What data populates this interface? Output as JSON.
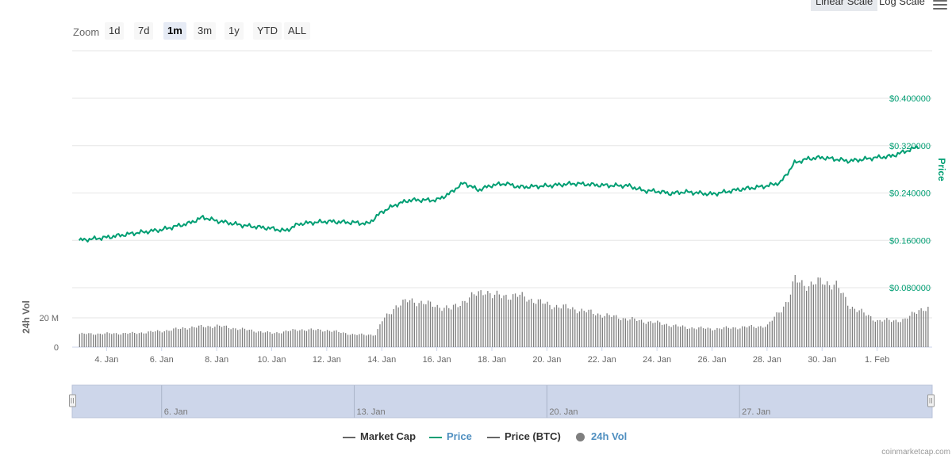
{
  "header": {
    "scale_buttons": [
      {
        "label": "Linear Scale",
        "active": true
      },
      {
        "label": "Log Scale",
        "active": false
      }
    ],
    "menu_icon": "hamburger-menu-icon"
  },
  "zoom": {
    "label": "Zoom",
    "buttons": [
      {
        "label": "1d",
        "active": false
      },
      {
        "label": "7d",
        "active": false
      },
      {
        "label": "1m",
        "active": true
      },
      {
        "label": "3m",
        "active": false
      },
      {
        "label": "1y",
        "active": false
      },
      {
        "label": "YTD",
        "active": false
      },
      {
        "label": "ALL",
        "active": false
      }
    ]
  },
  "colors": {
    "price": "#009e73",
    "volume": "#7f7f7f",
    "navigator_fill": "#cdd6ea",
    "axis_text": "#666666",
    "grid": "#e6e6e6"
  },
  "legend": [
    {
      "label": "Market Cap",
      "symbol": "line",
      "color": "#666666",
      "text_color": "#333333"
    },
    {
      "label": "Price",
      "symbol": "line",
      "color": "#009e73",
      "text_color": "#4f8fc0"
    },
    {
      "label": "Price (BTC)",
      "symbol": "line",
      "color": "#666666",
      "text_color": "#333333"
    },
    {
      "label": "24h Vol",
      "symbol": "dot",
      "color": "#7f7f7f",
      "text_color": "#4f8fc0"
    }
  ],
  "credit": "coinmarketcap.com",
  "chart_data": {
    "type": "line",
    "x_type": "date",
    "x_ticks": [
      "4. Jan",
      "6. Jan",
      "8. Jan",
      "10. Jan",
      "12. Jan",
      "14. Jan",
      "16. Jan",
      "18. Jan",
      "20. Jan",
      "22. Jan",
      "24. Jan",
      "26. Jan",
      "28. Jan",
      "30. Jan",
      "1. Feb"
    ],
    "x_range": [
      "2018-01-02T18:00",
      "2018-02-03T00:00"
    ],
    "price_axis": {
      "title": "Price",
      "ticks": [
        "$0.080000",
        "$0.160000",
        "$0.240000",
        "$0.320000",
        "$0.400000"
      ],
      "range": [
        0.08,
        0.4
      ],
      "position": "right"
    },
    "volume_axis": {
      "title": "24h Vol",
      "ticks": [
        "0",
        "20 M"
      ],
      "range": [
        0,
        40000000
      ],
      "position": "left"
    },
    "series": [
      {
        "name": "Price",
        "type": "line",
        "unit": "USD",
        "points": [
          [
            "2018-01-03",
            0.16
          ],
          [
            "2018-01-04",
            0.165
          ],
          [
            "2018-01-05",
            0.172
          ],
          [
            "2018-01-06",
            0.178
          ],
          [
            "2018-01-07",
            0.189
          ],
          [
            "2018-01-07T12:00",
            0.199
          ],
          [
            "2018-01-08",
            0.193
          ],
          [
            "2018-01-09",
            0.185
          ],
          [
            "2018-01-10",
            0.18
          ],
          [
            "2018-01-10T12:00",
            0.176
          ],
          [
            "2018-01-11",
            0.188
          ],
          [
            "2018-01-12",
            0.192
          ],
          [
            "2018-01-13",
            0.19
          ],
          [
            "2018-01-13T12:00",
            0.188
          ],
          [
            "2018-01-14",
            0.208
          ],
          [
            "2018-01-14T12:00",
            0.22
          ],
          [
            "2018-01-15",
            0.228
          ],
          [
            "2018-01-16",
            0.228
          ],
          [
            "2018-01-16T12:00",
            0.24
          ],
          [
            "2018-01-16T18:00",
            0.25
          ],
          [
            "2018-01-17",
            0.257
          ],
          [
            "2018-01-17T12:00",
            0.245
          ],
          [
            "2018-01-18",
            0.253
          ],
          [
            "2018-01-18T12:00",
            0.256
          ],
          [
            "2018-01-19",
            0.25
          ],
          [
            "2018-01-20",
            0.252
          ],
          [
            "2018-01-20T12:00",
            0.254
          ],
          [
            "2018-01-21",
            0.256
          ],
          [
            "2018-01-22",
            0.253
          ],
          [
            "2018-01-23",
            0.252
          ],
          [
            "2018-01-23T12:00",
            0.244
          ],
          [
            "2018-01-24",
            0.243
          ],
          [
            "2018-01-24T12:00",
            0.239
          ],
          [
            "2018-01-25",
            0.242
          ],
          [
            "2018-01-26",
            0.238
          ],
          [
            "2018-01-27",
            0.246
          ],
          [
            "2018-01-28",
            0.252
          ],
          [
            "2018-01-28T12:00",
            0.258
          ],
          [
            "2018-01-29",
            0.291
          ],
          [
            "2018-01-29T12:00",
            0.298
          ],
          [
            "2018-01-30",
            0.3
          ],
          [
            "2018-01-30T12:00",
            0.297
          ],
          [
            "2018-01-31",
            0.294
          ],
          [
            "2018-02-01",
            0.3
          ],
          [
            "2018-02-01T12:00",
            0.302
          ],
          [
            "2018-02-02",
            0.31
          ],
          [
            "2018-02-02T12:00",
            0.318
          ]
        ]
      },
      {
        "name": "24h Vol",
        "type": "column",
        "unit": "USD",
        "points": [
          [
            "2018-01-03",
            9000000
          ],
          [
            "2018-01-05",
            9500000
          ],
          [
            "2018-01-06",
            11000000
          ],
          [
            "2018-01-07",
            13500000
          ],
          [
            "2018-01-08",
            14500000
          ],
          [
            "2018-01-09",
            12000000
          ],
          [
            "2018-01-10",
            9500000
          ],
          [
            "2018-01-11",
            12000000
          ],
          [
            "2018-01-12",
            11500000
          ],
          [
            "2018-01-13",
            8500000
          ],
          [
            "2018-01-13T18:00",
            8500000
          ],
          [
            "2018-01-14",
            18000000
          ],
          [
            "2018-01-14T12:00",
            28000000
          ],
          [
            "2018-01-15",
            32000000
          ],
          [
            "2018-01-16",
            28000000
          ],
          [
            "2018-01-16T12:00",
            26000000
          ],
          [
            "2018-01-17",
            32000000
          ],
          [
            "2018-01-17T18:00",
            39000000
          ],
          [
            "2018-01-18",
            35000000
          ],
          [
            "2018-01-19",
            35000000
          ],
          [
            "2018-01-20",
            29000000
          ],
          [
            "2018-01-21",
            26000000
          ],
          [
            "2018-01-22",
            22000000
          ],
          [
            "2018-01-23",
            19000000
          ],
          [
            "2018-01-24",
            16500000
          ],
          [
            "2018-01-25",
            13500000
          ],
          [
            "2018-01-26",
            12500000
          ],
          [
            "2018-01-27",
            13500000
          ],
          [
            "2018-01-28",
            14500000
          ],
          [
            "2018-01-28T18:00",
            32000000
          ],
          [
            "2018-01-29",
            46000000
          ],
          [
            "2018-01-29T12:00",
            42000000
          ],
          [
            "2018-01-30",
            45000000
          ],
          [
            "2018-01-30T12:00",
            42000000
          ],
          [
            "2018-01-31",
            28000000
          ],
          [
            "2018-02-01",
            18000000
          ],
          [
            "2018-02-02",
            18500000
          ],
          [
            "2018-02-02T12:00",
            26000000
          ]
        ]
      }
    ],
    "navigator": {
      "labels": [
        "6. Jan",
        "13. Jan",
        "20. Jan",
        "27. Jan"
      ],
      "range": [
        "2018-01-02T18:00",
        "2018-02-03T00:00"
      ]
    },
    "grid": true,
    "legend_position": "bottom-center"
  }
}
